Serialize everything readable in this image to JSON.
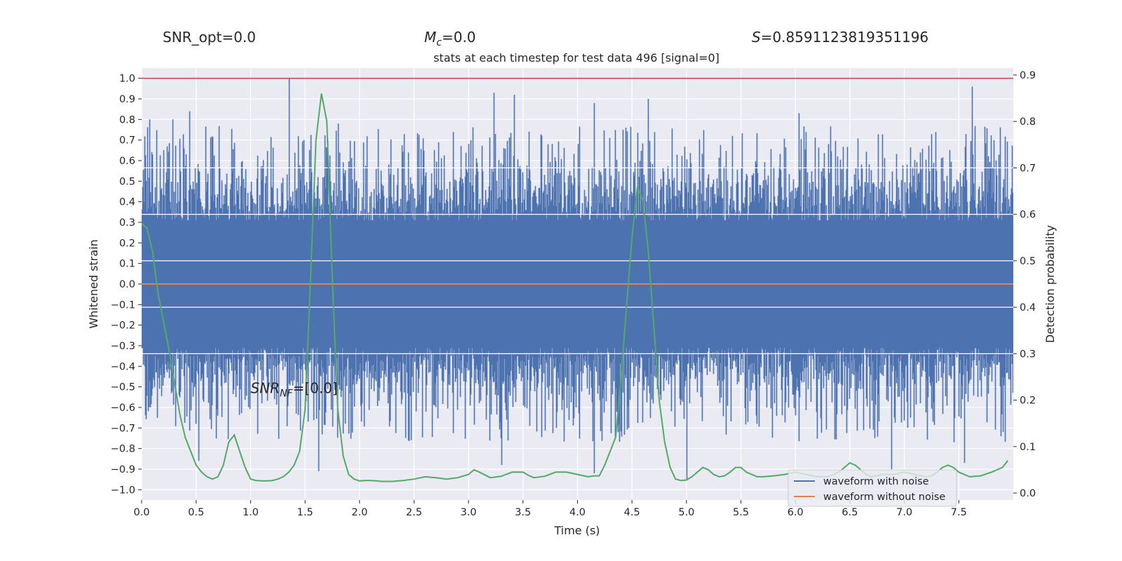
{
  "stats": {
    "snr_opt": "SNR_opt=0.0",
    "mc_symbol": "M",
    "mc_sub": "c",
    "mc_value": "=0.0",
    "s_symbol": "S",
    "s_value": "=0.8591123819351196"
  },
  "snr_nf_annotation": {
    "symbol": "SNR",
    "sub": "NF",
    "value": "=[0.0]",
    "x": 1.0,
    "y": -0.53
  },
  "colors": {
    "background": "#eaeaf2",
    "grid": "#ffffff",
    "noise": "#4c72b0",
    "clean": "#dd8452",
    "probability": "#55a868",
    "threshold": "#c44e52"
  },
  "chart_data": {
    "type": "line",
    "title": "stats at each timestep for test data 496 [signal=0]",
    "xlabel": "Time (s)",
    "ylabel": "Whitened strain",
    "y2label": "Detection probability",
    "xlim": [
      0.0,
      8.0
    ],
    "ylim": [
      -1.05,
      1.05
    ],
    "y2lim": [
      -0.015,
      0.915
    ],
    "x_ticks": [
      "0.0",
      "0.5",
      "1.0",
      "1.5",
      "2.0",
      "2.5",
      "3.0",
      "3.5",
      "4.0",
      "4.5",
      "5.0",
      "5.5",
      "6.0",
      "6.5",
      "7.0",
      "7.5"
    ],
    "y_ticks": [
      "−1.0",
      "−0.9",
      "−0.8",
      "−0.7",
      "−0.6",
      "−0.5",
      "−0.4",
      "−0.3",
      "−0.2",
      "−0.1",
      "0.0",
      "0.1",
      "0.2",
      "0.3",
      "0.4",
      "0.5",
      "0.6",
      "0.7",
      "0.8",
      "0.9",
      "1.0"
    ],
    "y2_ticks": [
      "0.0",
      "0.1",
      "0.2",
      "0.3",
      "0.4",
      "0.5",
      "0.6",
      "0.7",
      "0.8",
      "0.9"
    ],
    "y2_gridlines": [
      0.3,
      0.4,
      0.5,
      0.6,
      0.7
    ],
    "grid": true,
    "legend_position": "lower-right",
    "threshold": {
      "axis": "y",
      "value": 1.0
    },
    "series": [
      {
        "name": "waveform with noise",
        "axis": "y",
        "description_values": "dense noise samples, peak |strain| = 1.0",
        "noise_peaks": [
          {
            "x": 0.07,
            "y": 0.8
          },
          {
            "x": 0.28,
            "y": 0.8
          },
          {
            "x": 0.44,
            "y": 0.84
          },
          {
            "x": 1.35,
            "y": 1.0
          },
          {
            "x": 1.8,
            "y": 0.78
          },
          {
            "x": 3.23,
            "y": 0.93
          },
          {
            "x": 3.42,
            "y": 0.92
          },
          {
            "x": 4.15,
            "y": 0.88
          },
          {
            "x": 4.65,
            "y": 0.9
          },
          {
            "x": 6.03,
            "y": 0.83
          },
          {
            "x": 7.62,
            "y": 0.96
          },
          {
            "x": 0.52,
            "y": -0.86
          },
          {
            "x": 1.62,
            "y": -0.91
          },
          {
            "x": 3.3,
            "y": -0.88
          },
          {
            "x": 4.15,
            "y": -0.92
          },
          {
            "x": 5.0,
            "y": -0.95
          },
          {
            "x": 6.88,
            "y": -0.9
          },
          {
            "x": 7.55,
            "y": -0.87
          }
        ]
      },
      {
        "name": "waveform without noise",
        "axis": "y",
        "x": [
          0.0,
          8.0
        ],
        "values": [
          0.0,
          0.0
        ]
      },
      {
        "name": "",
        "axis": "y2",
        "x": [
          0.0,
          0.05,
          0.1,
          0.15,
          0.2,
          0.25,
          0.3,
          0.35,
          0.4,
          0.45,
          0.5,
          0.55,
          0.6,
          0.65,
          0.7,
          0.75,
          0.8,
          0.85,
          0.9,
          0.95,
          1.0,
          1.05,
          1.1,
          1.15,
          1.2,
          1.25,
          1.3,
          1.35,
          1.4,
          1.45,
          1.5,
          1.55,
          1.6,
          1.65,
          1.7,
          1.75,
          1.8,
          1.85,
          1.9,
          1.95,
          2.0,
          2.05,
          2.1,
          2.15,
          2.2,
          2.3,
          2.4,
          2.5,
          2.6,
          2.7,
          2.8,
          2.9,
          3.0,
          3.05,
          3.1,
          3.2,
          3.3,
          3.4,
          3.5,
          3.55,
          3.6,
          3.7,
          3.8,
          3.9,
          4.0,
          4.1,
          4.15,
          4.2,
          4.25,
          4.3,
          4.35,
          4.4,
          4.45,
          4.5,
          4.55,
          4.6,
          4.65,
          4.7,
          4.75,
          4.8,
          4.85,
          4.9,
          4.95,
          5.0,
          5.05,
          5.1,
          5.15,
          5.2,
          5.25,
          5.3,
          5.35,
          5.4,
          5.45,
          5.5,
          5.55,
          5.6,
          5.65,
          5.7,
          5.8,
          5.9,
          6.0,
          6.1,
          6.2,
          6.3,
          6.35,
          6.4,
          6.45,
          6.5,
          6.55,
          6.6,
          6.65,
          6.7,
          6.8,
          6.9,
          7.0,
          7.1,
          7.2,
          7.25,
          7.3,
          7.35,
          7.4,
          7.45,
          7.5,
          7.55,
          7.6,
          7.7,
          7.8,
          7.9,
          7.95
        ],
        "values": [
          0.58,
          0.57,
          0.52,
          0.43,
          0.37,
          0.31,
          0.24,
          0.17,
          0.12,
          0.09,
          0.06,
          0.045,
          0.035,
          0.03,
          0.035,
          0.06,
          0.11,
          0.125,
          0.09,
          0.055,
          0.03,
          0.027,
          0.026,
          0.026,
          0.027,
          0.03,
          0.035,
          0.045,
          0.06,
          0.09,
          0.18,
          0.46,
          0.76,
          0.86,
          0.8,
          0.46,
          0.18,
          0.08,
          0.04,
          0.03,
          0.026,
          0.027,
          0.027,
          0.026,
          0.025,
          0.025,
          0.027,
          0.03,
          0.035,
          0.033,
          0.03,
          0.033,
          0.04,
          0.05,
          0.045,
          0.033,
          0.036,
          0.045,
          0.045,
          0.038,
          0.033,
          0.036,
          0.045,
          0.045,
          0.04,
          0.035,
          0.037,
          0.037,
          0.06,
          0.09,
          0.12,
          0.25,
          0.4,
          0.55,
          0.66,
          0.63,
          0.52,
          0.36,
          0.2,
          0.11,
          0.055,
          0.03,
          0.027,
          0.028,
          0.035,
          0.045,
          0.055,
          0.05,
          0.04,
          0.035,
          0.037,
          0.045,
          0.055,
          0.055,
          0.045,
          0.04,
          0.035,
          0.035,
          0.037,
          0.04,
          0.045,
          0.04,
          0.035,
          0.035,
          0.04,
          0.045,
          0.055,
          0.065,
          0.06,
          0.05,
          0.04,
          0.035,
          0.04,
          0.04,
          0.045,
          0.04,
          0.035,
          0.037,
          0.045,
          0.055,
          0.06,
          0.055,
          0.045,
          0.04,
          0.035,
          0.037,
          0.045,
          0.055,
          0.07
        ]
      }
    ]
  }
}
